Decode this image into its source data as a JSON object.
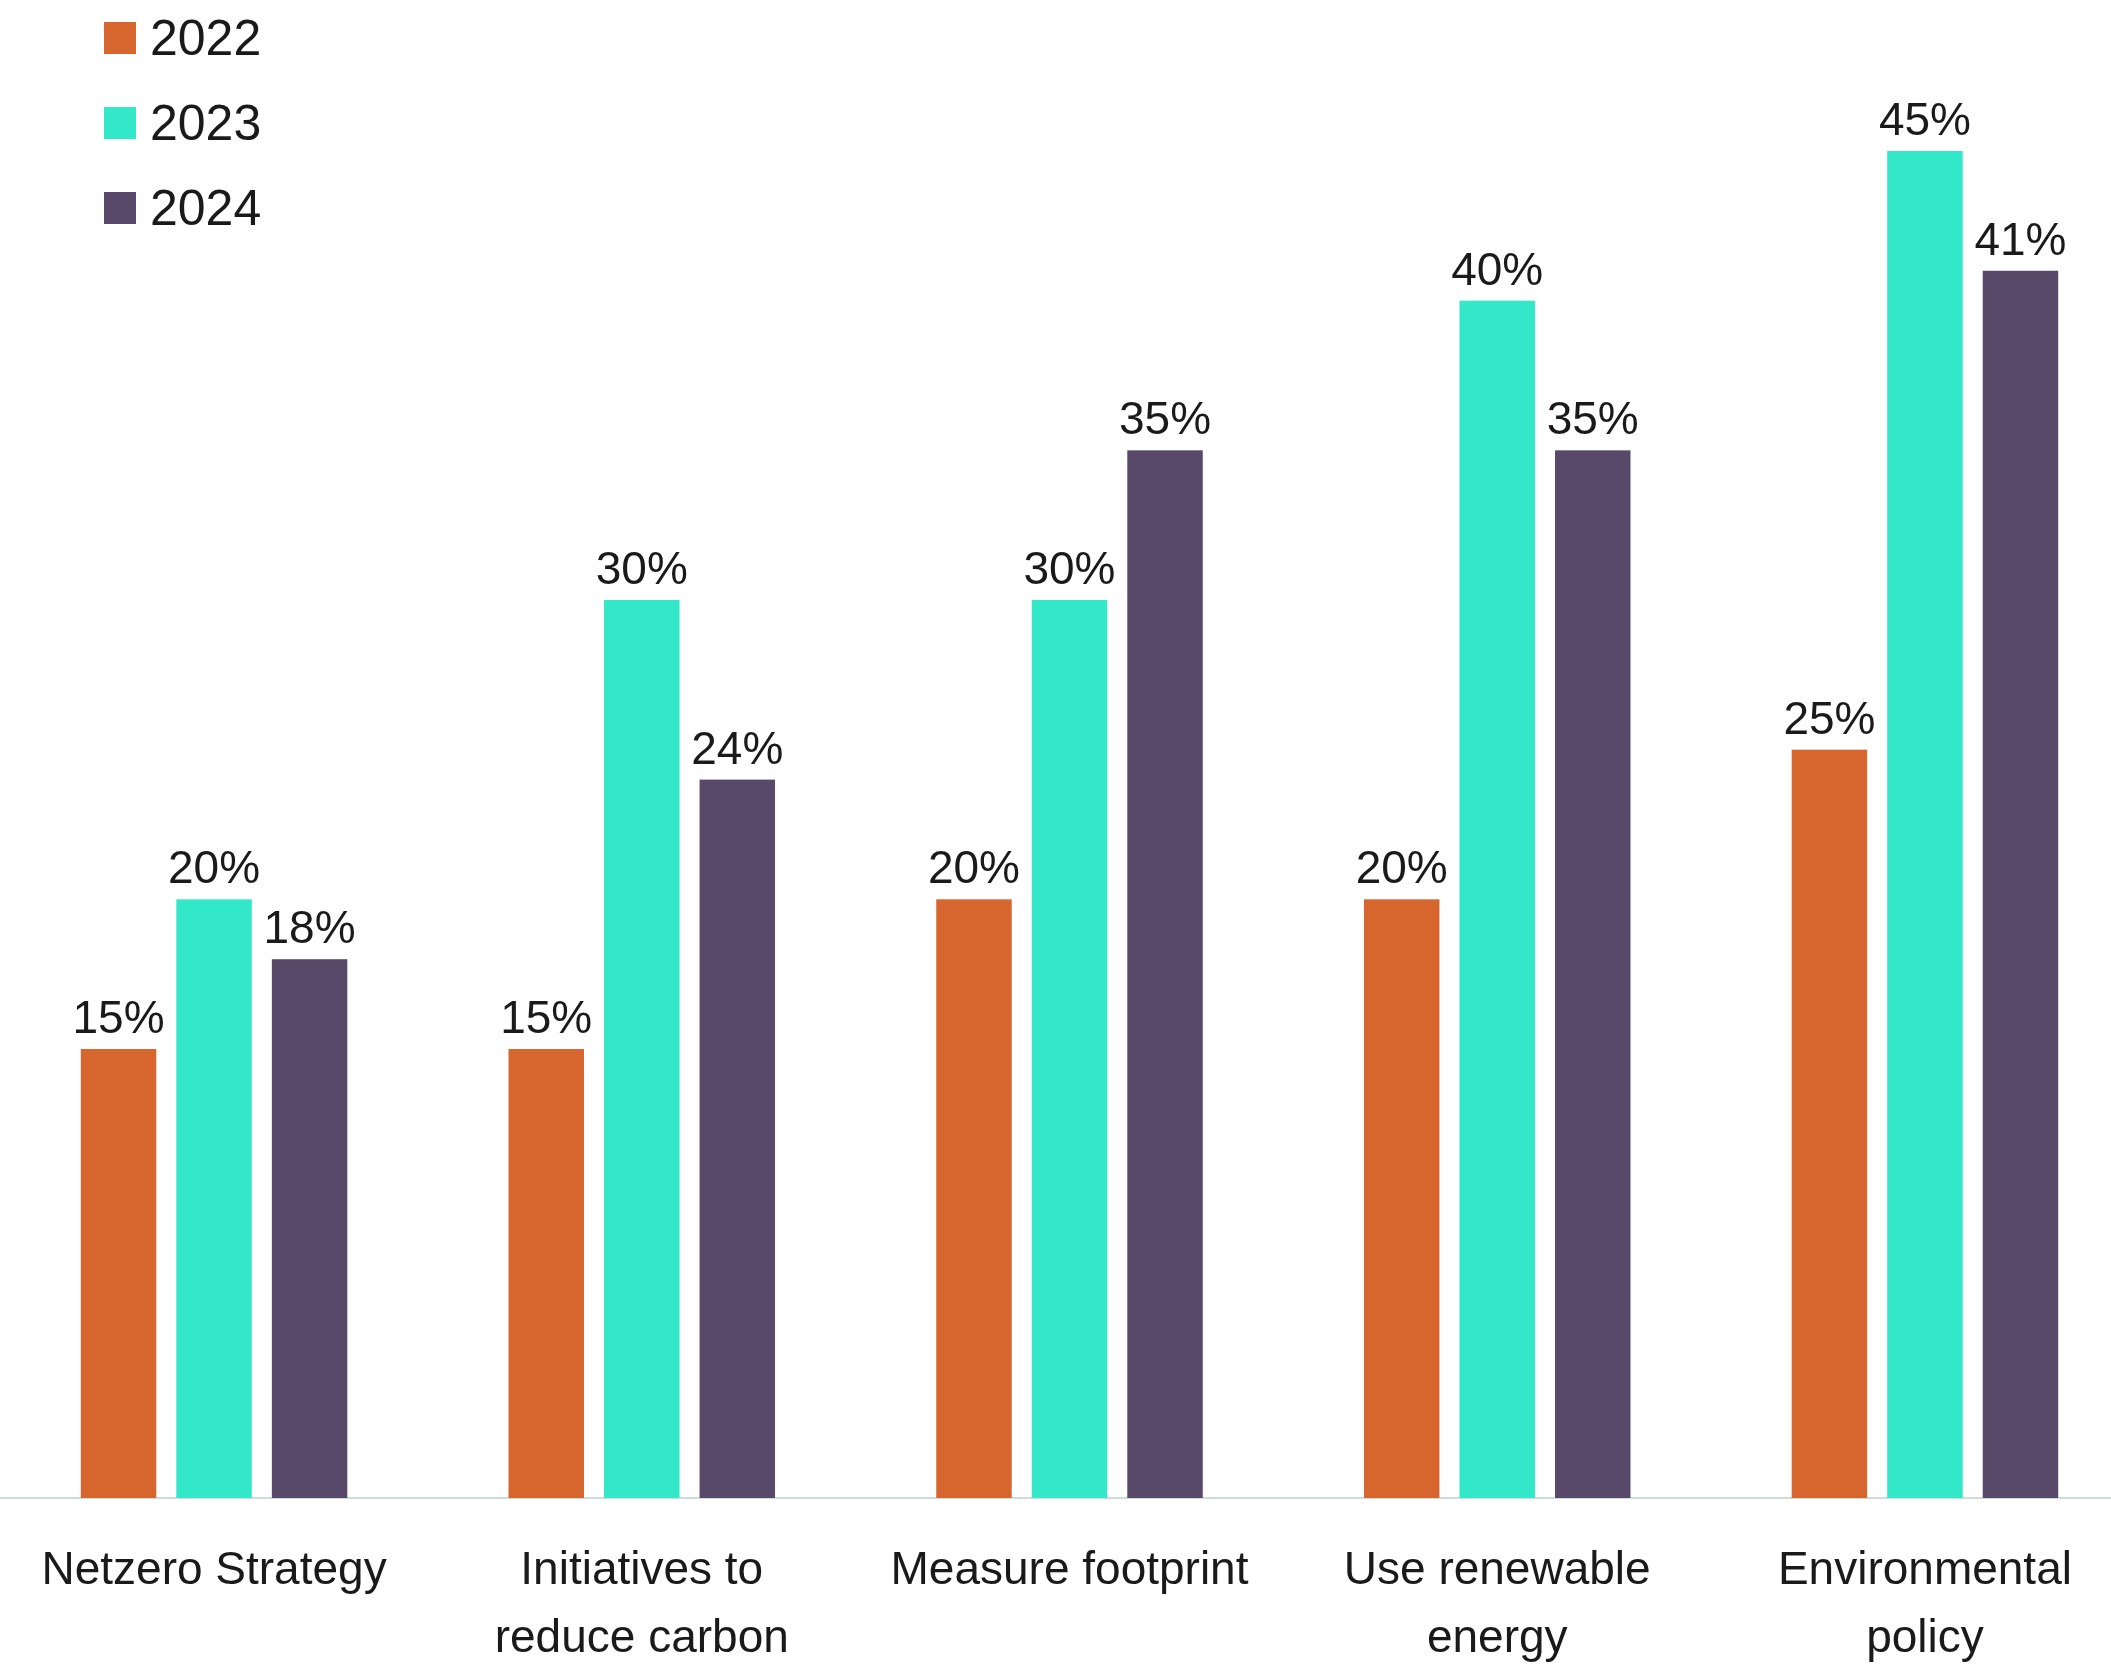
{
  "chart_data": {
    "type": "bar",
    "categories": [
      "Netzero Strategy",
      "Initiatives to reduce carbon",
      "Measure footprint",
      "Use renewable energy",
      "Environmental policy"
    ],
    "series": [
      {
        "name": "2022",
        "color": "#d6652e",
        "values": [
          15,
          15,
          20,
          20,
          25
        ],
        "value_labels": [
          "15%",
          "15%",
          "20%",
          "20%",
          "25%"
        ]
      },
      {
        "name": "2023",
        "color": "#32e8c8",
        "values": [
          20,
          30,
          30,
          40,
          45
        ],
        "value_labels": [
          "20%",
          "30%",
          "30%",
          "40%",
          "45%"
        ]
      },
      {
        "name": "2024",
        "color": "#58496b",
        "values": [
          18,
          24,
          35,
          35,
          41
        ],
        "value_labels": [
          "18%",
          "24%",
          "35%",
          "35%",
          "41%"
        ]
      }
    ],
    "legend": "top left"
  }
}
